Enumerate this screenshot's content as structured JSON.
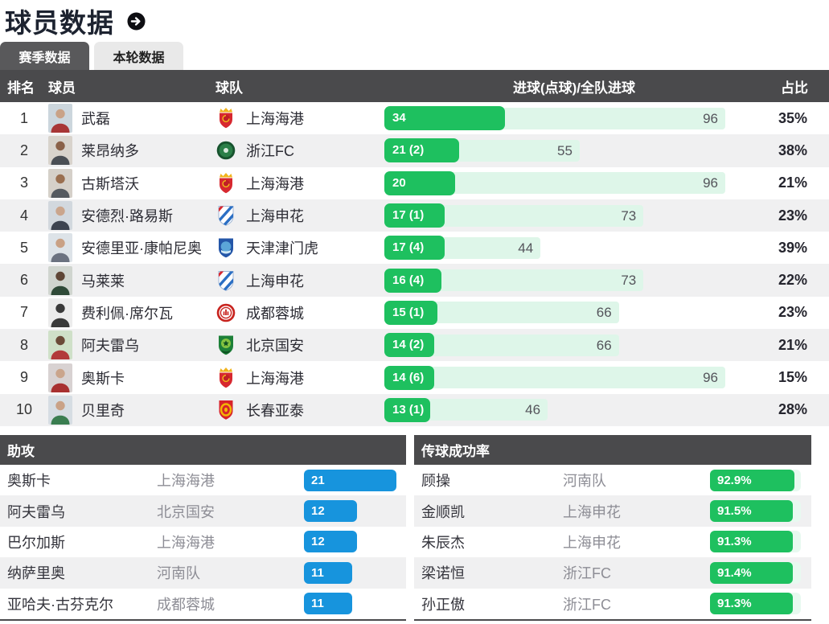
{
  "page": {
    "title": "球员数据",
    "title_arrow_icon": "arrow-right-circle"
  },
  "tabs": [
    {
      "label": "赛季数据",
      "active": true
    },
    {
      "label": "本轮数据",
      "active": false
    }
  ],
  "colors": {
    "goal_bar": "#1ec05f",
    "goal_track": "#def6e9",
    "assist_bar": "#1794dd",
    "header_bar": "#4a4a4c",
    "active_tab": "#59595b"
  },
  "season_table": {
    "columns": {
      "rank": "排名",
      "player": "球员",
      "team": "球队",
      "goals": "进球(点球)/全队进球",
      "share": "占比"
    },
    "max_scale": 96,
    "rows": [
      {
        "rank": 1,
        "player": "武磊",
        "team": "上海海港",
        "crest": "shanghai-port",
        "goals": 34,
        "goals_label": "34",
        "team_total": 96,
        "share": "35%"
      },
      {
        "rank": 2,
        "player": "莱昂纳多",
        "team": "浙江FC",
        "crest": "zhejiang-fc",
        "goals": 21,
        "goals_label": "21 (2)",
        "team_total": 55,
        "share": "38%"
      },
      {
        "rank": 3,
        "player": "古斯塔沃",
        "team": "上海海港",
        "crest": "shanghai-port",
        "goals": 20,
        "goals_label": "20",
        "team_total": 96,
        "share": "21%"
      },
      {
        "rank": 4,
        "player": "安德烈·路易斯",
        "team": "上海申花",
        "crest": "shanghai-shenhua",
        "goals": 17,
        "goals_label": "17 (1)",
        "team_total": 73,
        "share": "23%"
      },
      {
        "rank": 5,
        "player": "安德里亚·康帕尼奥",
        "team": "天津津门虎",
        "crest": "tianjin-jinmen-tiger",
        "goals": 17,
        "goals_label": "17 (4)",
        "team_total": 44,
        "share": "39%"
      },
      {
        "rank": 6,
        "player": "马莱莱",
        "team": "上海申花",
        "crest": "shanghai-shenhua",
        "goals": 16,
        "goals_label": "16 (4)",
        "team_total": 73,
        "share": "22%"
      },
      {
        "rank": 7,
        "player": "费利佩·席尔瓦",
        "team": "成都蓉城",
        "crest": "chengdu-rongcheng",
        "goals": 15,
        "goals_label": "15 (1)",
        "team_total": 66,
        "share": "23%"
      },
      {
        "rank": 8,
        "player": "阿夫雷乌",
        "team": "北京国安",
        "crest": "beijing-guoan",
        "goals": 14,
        "goals_label": "14 (2)",
        "team_total": 66,
        "share": "21%"
      },
      {
        "rank": 9,
        "player": "奥斯卡",
        "team": "上海海港",
        "crest": "shanghai-port",
        "goals": 14,
        "goals_label": "14 (6)",
        "team_total": 96,
        "share": "15%"
      },
      {
        "rank": 10,
        "player": "贝里奇",
        "team": "长春亚泰",
        "crest": "changchun-yatai",
        "goals": 13,
        "goals_label": "13 (1)",
        "team_total": 46,
        "share": "28%"
      }
    ]
  },
  "assists": {
    "title": "助攻",
    "max_scale": 21,
    "rows": [
      {
        "player": "奥斯卡",
        "team": "上海海港",
        "value": 21
      },
      {
        "player": "阿夫雷乌",
        "team": "北京国安",
        "value": 12
      },
      {
        "player": "巴尔加斯",
        "team": "上海海港",
        "value": 12
      },
      {
        "player": "纳萨里奥",
        "team": "河南队",
        "value": 11
      },
      {
        "player": "亚哈夫·古芬克尔",
        "team": "成都蓉城",
        "value": 11
      }
    ]
  },
  "pass_accuracy": {
    "title": "传球成功率",
    "max_scale": 100,
    "rows": [
      {
        "player": "顾操",
        "team": "河南队",
        "value": 92.9,
        "label": "92.9%"
      },
      {
        "player": "金顺凯",
        "team": "上海申花",
        "value": 91.5,
        "label": "91.5%"
      },
      {
        "player": "朱辰杰",
        "team": "上海申花",
        "value": 91.3,
        "label": "91.3%"
      },
      {
        "player": "梁诺恒",
        "team": "浙江FC",
        "value": 91.4,
        "label": "91.4%"
      },
      {
        "player": "孙正傲",
        "team": "浙江FC",
        "value": 91.3,
        "label": "91.3%"
      }
    ]
  }
}
